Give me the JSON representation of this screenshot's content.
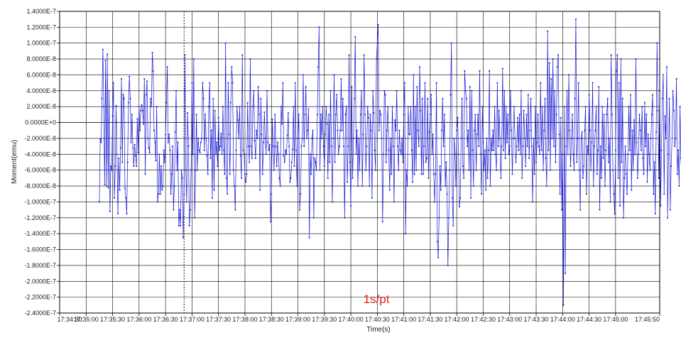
{
  "chart_data": {
    "type": "line",
    "title": "",
    "xlabel": "Time(s)",
    "ylabel": "Moment(emu)",
    "annotation": "1s/pt",
    "grid": true,
    "legend": "none",
    "colors": {
      "series": "#1a1ad6",
      "annotation": "#e02020",
      "grid": "#000000",
      "background": "#ffffff"
    },
    "xlim": [
      "17:34:30",
      "17:45:50"
    ],
    "ylim": [
      -2.4e-07,
      1.4e-07
    ],
    "x_ticks": [
      "17:34:30",
      "17:35:00",
      "17:35:30",
      "17:36:00",
      "17:36:30",
      "17:37:00",
      "17:37:30",
      "17:38:00",
      "17:38:30",
      "17:39:00",
      "17:39:30",
      "17:40:00",
      "17:40:30",
      "17:41:00",
      "17:41:30",
      "17:42:00",
      "17:42:30",
      "17:43:00",
      "17:43:30",
      "17:44:00",
      "17:44:30",
      "17:45:00",
      "17:45:50"
    ],
    "y_ticks": [
      "1.4000E-7",
      "1.2000E-7",
      "1.0000E-7",
      "8.0000E-8",
      "6.0000E-8",
      "4.0000E-8",
      "2.0000E-8",
      "0.0000E+0",
      "-2.0000E-8",
      "-4.0000E-8",
      "-6.0000E-8",
      "-8.0000E-8",
      "-1.0000E-7",
      "-1.2000E-7",
      "-1.4000E-7",
      "-1.6000E-7",
      "-1.8000E-7",
      "-2.0000E-7",
      "-2.2000E-7",
      "-2.4000E-7"
    ],
    "zero_line": 0,
    "marker_line_x": "17:36:51",
    "series": [
      {
        "name": "",
        "x_start": "17:35:15",
        "x_step_seconds": 1,
        "values": [
          -1e-07,
          -2.1e-08,
          -2.5e-08,
          3e-08,
          9.2e-08,
          2e-08,
          -7.8e-08,
          7.8e-08,
          -8e-08,
          8.6e-08,
          -8.2e-08,
          4e-08,
          -1.12e-07,
          -5.5e-08,
          -6e-08,
          8e-09,
          5e-08,
          -9.5e-08,
          -5.5e-08,
          2.1e-08,
          -4e-08,
          -1.15e-07,
          -4.5e-08,
          -8.5e-08,
          -3.2e-08,
          5.5e-08,
          -5e-08,
          3.5e-08,
          3e-08,
          -8.3e-08,
          -9.5e-08,
          -1.15e-07,
          -5e-08,
          2.5e-08,
          5.8e-08,
          3e-08,
          -2.5e-08,
          1e-08,
          -3.2e-08,
          -5.5e-08,
          -2.8e-08,
          -4.2e-08,
          -5.5e-08,
          4.5e-09,
          -3.8e-08,
          2e-08,
          -1e-08,
          1.5e-08,
          2.2e-08,
          1.5e-08,
          -2e-09,
          5.5e-08,
          -6.5e-08,
          3.5e-08,
          5.2e-08,
          -2e-08,
          -3.2e-08,
          -3.8e-08,
          3e-08,
          2e-08,
          8.8e-08,
          6.5e-08,
          -1e-08,
          -2.5e-08,
          -4.8e-08,
          2e-08,
          -1e-07,
          -9e-08,
          -4e-08,
          -9e-08,
          -5.5e-08,
          -8.5e-08,
          -8e-08,
          -3.5e-08,
          -5e-08,
          -1.5e-08,
          2.5e-08,
          7e-08,
          -2.5e-08,
          -1.5e-08,
          -3.5e-08,
          -9e-08,
          -6.5e-08,
          -3e-08,
          -1.1e-07,
          -8e-08,
          -1.2e-08,
          4e-08,
          -6e-08,
          -2.5e-08,
          -1.3e-07,
          -1.1e-07,
          -1.3e-07,
          -6e-08,
          -7e-08,
          -1.45e-07,
          -9e-08,
          8.5e-08,
          -6e-08,
          -1e-07,
          1.2e-08,
          -3e-08,
          -1.3e-07,
          -1.1e-07,
          -6e-08,
          5e-08,
          -4e-08,
          8e-08,
          -1.2e-07,
          -6e-08,
          1e-08,
          -6e-08,
          -2e-08,
          -3.5e-08,
          -3.8e-08,
          -2.5e-08,
          -2e-08,
          5e-08,
          3e-08,
          -3.5e-08,
          1e-08,
          -2e-08,
          -4.2e-08,
          -6.5e-08,
          2e-08,
          5e-08,
          -4.5e-08,
          -1e-08,
          -9.5e-08,
          3e-08,
          -8.5e-08,
          1.5e-08,
          -4e-08,
          -2.5e-08,
          -5.5e-08,
          6e-09,
          -3.5e-08,
          -3e-08,
          -1.4e-08,
          -4e-08,
          2e-08,
          -3.5e-08,
          -6.5e-08,
          1e-07,
          -7e-08,
          -9e-08,
          5e-08,
          -1.5e-08,
          -6.5e-08,
          2.5e-08,
          7e-08,
          5e-08,
          -6e-08,
          -8e-08,
          -1.1e-07,
          -3.5e-08,
          2e-08,
          3e-09,
          -2e-08,
          2e-08,
          -4.2e-08,
          -7e-08,
          8.5e-08,
          -3.5e-08,
          -4e-08,
          -6.5e-08,
          -7.5e-08,
          -6.5e-08,
          2.5e-08,
          -3e-08,
          -5e-08,
          8e-08,
          -3e-08,
          -4.5e-08,
          2e-08,
          4e-08,
          -2.3e-08,
          -4.5e-08,
          -1e-08,
          -2e-08,
          4.5e-08,
          1e-08,
          -8.5e-08,
          3e-08,
          -1.5e-08,
          -6.5e-08,
          -2.5e-08,
          1.3e-08,
          -2e-08,
          -4e-08,
          4e-08,
          -2.5e-08,
          -3.5e-08,
          -2.8e-08,
          -1.25e-07,
          -9e-08,
          4e-09,
          -3e-08,
          -6e-08,
          1e-08,
          -3e-08,
          -5.5e-08,
          -2.5e-08,
          -4e-08,
          -7e-08,
          -8e-08,
          2e-08,
          -2e-09,
          5e-08,
          -4.2e-08,
          -5e-08,
          -3.5e-08,
          -4e-08,
          -1.6e-08,
          1.2e-08,
          -3e-08,
          -7.5e-08,
          -7e-08,
          -5e-08,
          -3.4e-08,
          2e-08,
          -5.5e-08,
          5e-08,
          -3.5e-08,
          -8e-08,
          -2e-08,
          1e-08,
          -1.1e-07,
          -9e-08,
          -3e-08,
          -2e-08,
          6e-08,
          -3e-08,
          1e-08,
          4.5e-08,
          -2e-08,
          -1e-08,
          1.7e-08,
          -1.45e-07,
          -4e-08,
          -6.5e-08,
          -2e-08,
          -1e-08,
          -1.2e-07,
          -4.5e-08,
          -5e-08,
          -6e-08,
          1e-08,
          7e-08,
          1.2e-07,
          -6e-08,
          1e-08,
          -2e-08,
          2e-08,
          -3e-08,
          -5.5e-08,
          -1.5e-08,
          2e-08,
          -2e-09,
          -7e-08,
          1e-08,
          -5e-08,
          4e-08,
          -3e-08,
          -1e-07,
          -2e-08,
          6e-08,
          -5e-08,
          1e-08,
          3.5e-08,
          -1e-08,
          -4e-08,
          -3e-08,
          -1e-08,
          5.5e-08,
          -1e-08,
          3e-08,
          -3e-08,
          -1.2e-07,
          1e-08,
          2e-08,
          -7.5e-08,
          -3e-08,
          8.5e-08,
          -5e-08,
          -1.05e-07,
          4.5e-08,
          -7e-08,
          -2e-08,
          3e-08,
          1.08e-07,
          -4e-08,
          -1e-08,
          -8e-08,
          -2e-08,
          -6e-08,
          1e-08,
          4e-08,
          -8e-08,
          -1.5e-08,
          8.5e-08,
          1e-08,
          -6e-08,
          -3e-08,
          2e-08,
          6e-09,
          -8e-08,
          1e-08,
          -1e-08,
          -9.5e-08,
          4e-08,
          1.2e-08,
          -3.5e-08,
          -6e-08,
          8e-08,
          1e-07,
          1.23e-07,
          -1e-08,
          1.5e-08,
          1e-08,
          -2e-08,
          -1.25e-07,
          -4e-08,
          4e-08,
          3.5e-08,
          -5e-08,
          -1e-08,
          2e-08,
          -3.5e-08,
          -8.5e-08,
          -2e-08,
          -6.5e-08,
          2e-08,
          -3e-08,
          -1e-07,
          3e-09,
          -1e-08,
          4e-08,
          -3e-08,
          -6e-08,
          -1e-08,
          -3.5e-08,
          -4e-08,
          -2e-08,
          -5e-08,
          1e-08,
          5e-08,
          -1.4e-07,
          -6e-08,
          -8e-08,
          2e-08,
          -1.5e-08,
          -1.5e-08,
          2e-08,
          -3.5e-08,
          -7.5e-08,
          6e-08,
          -6.5e-08,
          2e-08,
          -6e-08,
          4.5e-08,
          -1e-08,
          -3e-08,
          7e-08,
          1.5e-08,
          -6.5e-08,
          3e-08,
          -6.5e-08,
          -3e-08,
          5e-08,
          -5e-08,
          -4.5e-08,
          3e-08,
          -7e-08,
          -1.2e-08,
          1e-08,
          3.5e-08,
          -4e-08,
          -1.5e-08,
          -6.5e-08,
          -1e-07,
          -6.5e-08,
          5e-08,
          -1.5e-07,
          -1.7e-07,
          -1.2e-07,
          -5.5e-08,
          -8.5e-08,
          -1e-08,
          3e-08,
          -3e-08,
          1e-08,
          -8e-08,
          -5e-08,
          -9e-08,
          -1.8e-07,
          -1.2e-07,
          -6e-08,
          3.5e-08,
          1e-07,
          -9.5e-08,
          -1.3e-07,
          -2e-08,
          -4e-08,
          -8e-08,
          -1e-08,
          6e-09,
          -4e-08,
          -1.06e-07,
          -9.5e-08,
          -2e-08,
          3e-08,
          -5.5e-08,
          -7e-08,
          6.5e-08,
          4e-08,
          3e-08,
          -3e-08,
          -1e-08,
          -6e-08,
          4.5e-08,
          -9.5e-08,
          4e-08,
          -3.5e-08,
          -8e-08,
          -1e-08,
          1e-08,
          -6e-08,
          -1.5e-08,
          1e-08,
          -3e-08,
          6.5e-08,
          -4e-08,
          -9e-08,
          2e-08,
          -2.5e-08,
          -6e-08,
          -3.5e-08,
          -8.5e-08,
          -2e-08,
          -7e-08,
          -3.5e-08,
          6.5e-08,
          -8e-08,
          -2e-08,
          -3.5e-08,
          -1e-08,
          -3.5e-08,
          2e-08,
          -4e-08,
          -6e-08,
          5e-08,
          -3e-08,
          1.5e-08,
          -2e-08,
          -7e-08,
          -3e-08,
          6.8e-08,
          -3.5e-08,
          4e-08,
          -4.5e-08,
          2e-08,
          -2.5e-08,
          1e-08,
          -4e-08,
          -3e-08,
          4e-08,
          -1e-08,
          -6.5e-08,
          -2e-08,
          2e-08,
          -2e-08,
          -5e-08,
          -3e-08,
          6e-09,
          -3.5e-08,
          1e-08,
          -4e-08,
          4e-08,
          -7e-08,
          -3e-08,
          1.5e-08,
          -2e-08,
          -5.5e-08,
          1e-08,
          -3e-08,
          3.5e-08,
          -4.5e-08,
          -1e-08,
          3e-08,
          -3e-08,
          -1e-07,
          -2e-08,
          -6.5e-08,
          2e-08,
          -5e-08,
          -2.5e-08,
          1e-08,
          -3e-08,
          -4e-08,
          5e-08,
          -3.5e-08,
          2e-08,
          -6e-08,
          -1e-08,
          3e-08,
          -4.5e-08,
          -8e-08,
          1.15e-07,
          -3.5e-08,
          7.5e-08,
          -6e-08,
          5.5e-08,
          -2e-08,
          8e-08,
          -3e-08,
          4e-08,
          -5e-08,
          1e-08,
          7e-08,
          8.5e-08,
          -1.5e-08,
          -9e-08,
          6e-09,
          -1.1e-07,
          -4e-08,
          -2.3e-07,
          2e-08,
          -1.9e-07,
          -3e-08,
          4e-08,
          -4e-08,
          6e-08,
          -1e-08,
          -5.5e-08,
          -2e-08,
          1e-08,
          -4e-08,
          -6e-08,
          3e-08,
          1.3e-07,
          -5e-08,
          -2e-08,
          5e-08,
          -6e-08,
          -1.1e-07,
          -2e-08,
          -1.2e-08,
          -7e-08,
          -5.5e-08,
          -1e-08,
          2e-08,
          -9e-08,
          -3e-08,
          -4e-08,
          3.5e-08,
          -1e-08,
          -6e-08,
          -2.5e-08,
          5e-08,
          -8e-08,
          -3e-08,
          -1e-08,
          2e-08,
          -6.5e-08,
          -3.5e-08,
          4.5e-08,
          -1.1e-07,
          -3e-08,
          -7e-08,
          2e-08,
          -4.5e-08,
          1e-08,
          -8e-08,
          -3.5e-08,
          1e-08,
          3e-08,
          -5e-08,
          -2e-08,
          -1e-07,
          8.5e-08,
          1e-08,
          -6e-08,
          -9e-08,
          -1.15e-07,
          -3.5e-08,
          6.5e-08,
          8.5e-08,
          -7e-08,
          5e-08,
          -1.05e-07,
          8e-08,
          -5e-08,
          3e-08,
          -1.2e-07,
          -7e-08,
          -3e-08,
          -6.5e-08,
          -9e-08,
          -4e-08,
          2e-08,
          -3.5e-08,
          3.5e-08,
          -8.5e-08,
          -1e-08,
          -6e-08,
          3e-09,
          -4e-08,
          8e-08,
          -2.5e-08,
          -7e-08,
          -4e-08,
          1e-08,
          -1e-08,
          -3.5e-08,
          2e-08,
          -4.5e-08,
          -6.5e-08,
          2.5e-08,
          -3e-08,
          1e-08,
          -7.5e-08,
          -1.5e-08,
          -4e-08,
          -6e-08,
          -2e-08,
          1e-08,
          3.5e-08,
          -9e-08,
          -5e-08,
          -1.15e-07,
          -1.2e-08,
          1e-07,
          1.5e-08,
          -7e-08,
          4e-08,
          -1.05e-07,
          -3.5e-08,
          3e-08,
          6e-08,
          -9e-08,
          8e-09,
          -2e-08,
          7e-08,
          -1.2e-07,
          -4e-08,
          3e-08,
          -1.1e-07,
          -5.5e-08,
          -2e-08,
          4e-08,
          1.5e-08,
          -3e-08,
          -2e-08,
          5.5e-08,
          -6.5e-08,
          -3.5e-08,
          -8e-08,
          2e-08,
          -4.5e-08,
          -7e-08,
          -1e-08,
          6e-08,
          -3e-08,
          -8.5e-08,
          2e-08,
          -4e-08,
          7.5e-08,
          -3e-08,
          -1.35e-07,
          9e-08,
          -4.5e-08,
          5.5e-08,
          -7e-08,
          3e-08,
          -8e-08,
          1.05e-07,
          -4e-08,
          5e-08,
          -1e-07,
          -6e-08,
          1e-08,
          -1.5e-07,
          -2e-08,
          4e-08,
          -7e-08,
          -1e-08,
          7e-08,
          -4e-08,
          -1.2e-08,
          -6.5e-08,
          2e-08,
          -1e-08,
          -3.5e-08,
          -1.2e-07,
          -3.5e-08,
          1e-08,
          -6e-08,
          -8.5e-08,
          3e-08,
          -2e-08,
          -1.05e-07,
          -1.7e-07,
          -5e-08,
          -3e-08,
          2.5e-08,
          -4.5e-08,
          5e-08,
          -4e-08,
          -2e-08,
          1.5e-08,
          -6.5e-08,
          -1e-08,
          3e-08,
          -5e-08,
          -1.1e-07,
          -1e-08,
          4e-08,
          -9e-08,
          -3.5e-08,
          -1e-08,
          -2e-08,
          1e-08,
          -4e-08,
          -8e-08,
          3.5e-08,
          -6e-08,
          -1.2e-07,
          -4e-08,
          1e-08,
          2.5e-08,
          -3e-08,
          -8e-08,
          1.5e-08,
          -4e-08,
          -2e-08,
          3e-08,
          -1.2e-08,
          -4e-08,
          1e-08,
          4.5e-08
        ]
      }
    ]
  }
}
